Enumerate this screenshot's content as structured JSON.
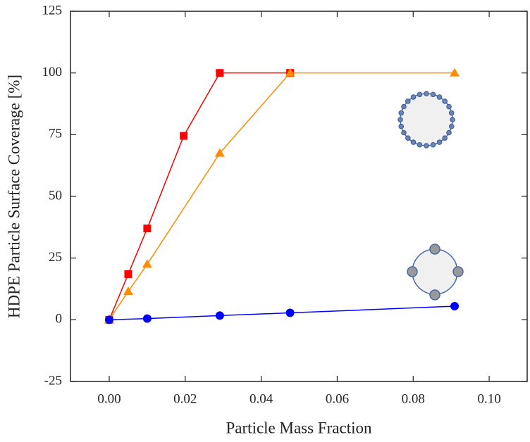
{
  "chart_data": {
    "type": "scatter",
    "xlabel": "Particle Mass Fraction",
    "ylabel": "HDPE Particle Surface Coverage [%]",
    "xlim": [
      -0.0102,
      0.11
    ],
    "ylim": [
      -25,
      125
    ],
    "xticks": [
      {
        "value": 0,
        "label": "0.00"
      },
      {
        "value": 0.02,
        "label": "0.02"
      },
      {
        "value": 0.04,
        "label": "0.04"
      },
      {
        "value": 0.06,
        "label": "0.06"
      },
      {
        "value": 0.08,
        "label": "0.08"
      },
      {
        "value": 0.1,
        "label": "0.10"
      }
    ],
    "yticks": [
      -25,
      0,
      25,
      50,
      75,
      100,
      125
    ],
    "series": [
      {
        "color": "#ff0000",
        "marker": "square",
        "x": [
          0,
          0.005,
          0.01,
          0.0196,
          0.0291,
          0.0476
        ],
        "values": [
          0,
          18.5,
          37,
          74.5,
          100,
          100
        ]
      },
      {
        "color": "#ff8c00",
        "marker": "triangle",
        "x": [
          0,
          0.005,
          0.01,
          0.0291,
          0.0476,
          0.0909
        ],
        "values": [
          0,
          11.5,
          22.5,
          67.5,
          100,
          100
        ]
      },
      {
        "color": "#0000ff",
        "marker": "circle",
        "x": [
          0,
          0.01,
          0.0291,
          0.0476,
          0.0909
        ],
        "values": [
          0,
          0.5,
          1.7,
          2.8,
          5.5
        ]
      }
    ]
  }
}
